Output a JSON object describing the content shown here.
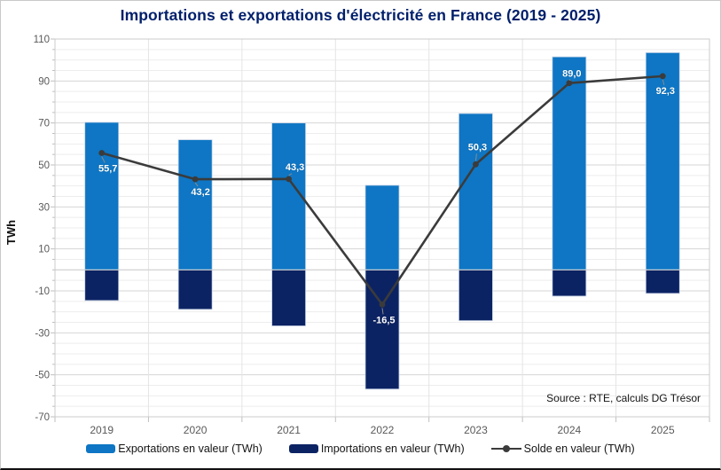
{
  "title": "Importations et exportations d'électricité en France (2019 - 2025)",
  "source_note": "Source : RTE, calculs DG Trésor",
  "colors": {
    "exports_bar": "#0E76C4",
    "imports_bar": "#0C2363",
    "solde_line": "#3B3B3B",
    "title_text": "#001F6B",
    "axis_text": "#595959",
    "data_label_text": "#FFFFFF",
    "grid_major": "#D6D6D6",
    "grid_minor": "#EDEDED",
    "grid_vertical": "#E4E4E4",
    "plot_border": "#CBCBCB",
    "source_text": "#141414"
  },
  "chart_data": {
    "type": "combo (bar + line)",
    "title": "Importations et exportations d'électricité en France (2019 - 2025)",
    "categories": [
      "2019",
      "2020",
      "2021",
      "2022",
      "2023",
      "2024",
      "2025"
    ],
    "series": [
      {
        "name": "Exportations en valeur (TWh)",
        "type": "bar",
        "values": [
          70.3,
          62.0,
          70.0,
          40.3,
          74.5,
          101.5,
          103.5
        ]
      },
      {
        "name": "Importations en valeur (TWh)",
        "type": "bar",
        "values": [
          -14.6,
          -18.8,
          -26.7,
          -56.8,
          -24.2,
          -12.5,
          -11.2
        ]
      },
      {
        "name": "Solde en valeur (TWh)",
        "type": "line",
        "values": [
          55.7,
          43.2,
          43.3,
          -16.5,
          50.3,
          89.0,
          92.3
        ],
        "labels": [
          "55,7",
          "43,2",
          "43,3",
          "-16,5",
          "50,3",
          "89,0",
          "92,3"
        ],
        "label_position": [
          "below",
          "below",
          "above",
          "below",
          "above",
          "above",
          "below"
        ]
      }
    ],
    "xlabel": "",
    "ylabel": "TWh",
    "ylim": [
      -70,
      110
    ],
    "yticks": [
      110,
      90,
      70,
      50,
      30,
      10,
      -10,
      -30,
      -50,
      -70
    ],
    "minor_gridline_step": 5,
    "grid": true,
    "legend_position": "bottom"
  },
  "legend": {
    "items": [
      {
        "label": "Exportations en valeur (TWh)",
        "marker": "bar-swatch",
        "color": "#0E76C4"
      },
      {
        "label": "Importations en valeur (TWh)",
        "marker": "bar-swatch",
        "color": "#0C2363"
      },
      {
        "label": "Solde en valeur (TWh)",
        "marker": "line-dot-swatch",
        "color": "#3B3B3B"
      }
    ]
  }
}
